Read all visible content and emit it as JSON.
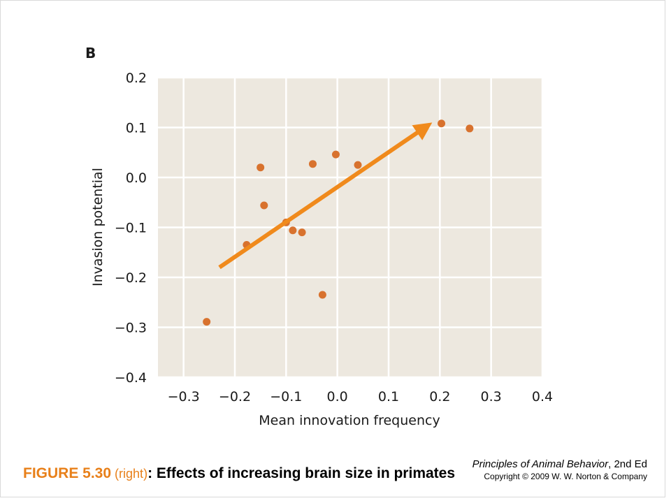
{
  "chart_data": {
    "type": "scatter",
    "panel_letter": "B",
    "xlabel": "Mean innovation frequency",
    "ylabel": "Invasion potential",
    "xlim": [
      -0.35,
      0.4
    ],
    "ylim": [
      -0.4,
      0.2
    ],
    "xticks": [
      -0.3,
      -0.2,
      -0.1,
      0.0,
      0.1,
      0.2,
      0.3,
      0.4
    ],
    "xtick_labels": [
      "−0.3",
      "−0.2",
      "−0.1",
      "0.0",
      "0.1",
      "0.2",
      "0.3",
      "0.4"
    ],
    "yticks": [
      0.2,
      0.1,
      0.0,
      -0.1,
      -0.2,
      -0.3,
      -0.4
    ],
    "ytick_labels": [
      "0.2",
      "0.1",
      "0.0",
      "−0.1",
      "−0.2",
      "−0.3",
      "−0.4"
    ],
    "grid": true,
    "points": [
      {
        "x": -0.255,
        "y": -0.289
      },
      {
        "x": -0.177,
        "y": -0.135
      },
      {
        "x": -0.15,
        "y": 0.02
      },
      {
        "x": -0.143,
        "y": -0.056
      },
      {
        "x": -0.1,
        "y": -0.09
      },
      {
        "x": -0.087,
        "y": -0.106
      },
      {
        "x": -0.069,
        "y": -0.11
      },
      {
        "x": -0.048,
        "y": 0.027
      },
      {
        "x": -0.029,
        "y": -0.235
      },
      {
        "x": -0.003,
        "y": 0.046
      },
      {
        "x": 0.04,
        "y": 0.025
      },
      {
        "x": 0.203,
        "y": 0.108
      },
      {
        "x": 0.258,
        "y": 0.098
      }
    ],
    "trend_arrow": {
      "from": [
        -0.23,
        -0.18
      ],
      "to": [
        0.185,
        0.11
      ]
    },
    "colors": {
      "background": "#ede8df",
      "grid": "#ffffff",
      "point": "#d8722e",
      "arrow": "#f08a1c"
    }
  },
  "caption": {
    "figure_number": "FIGURE 5.30",
    "side_open": " (",
    "side": "right",
    "side_close": ")",
    "title": ": Effects of increasing brain size in primates"
  },
  "credits": {
    "book_title": "Principles of Animal Behavior",
    "edition": ", 2nd Ed",
    "copyright": "Copyright © 2009 W. W. Norton & Company"
  }
}
